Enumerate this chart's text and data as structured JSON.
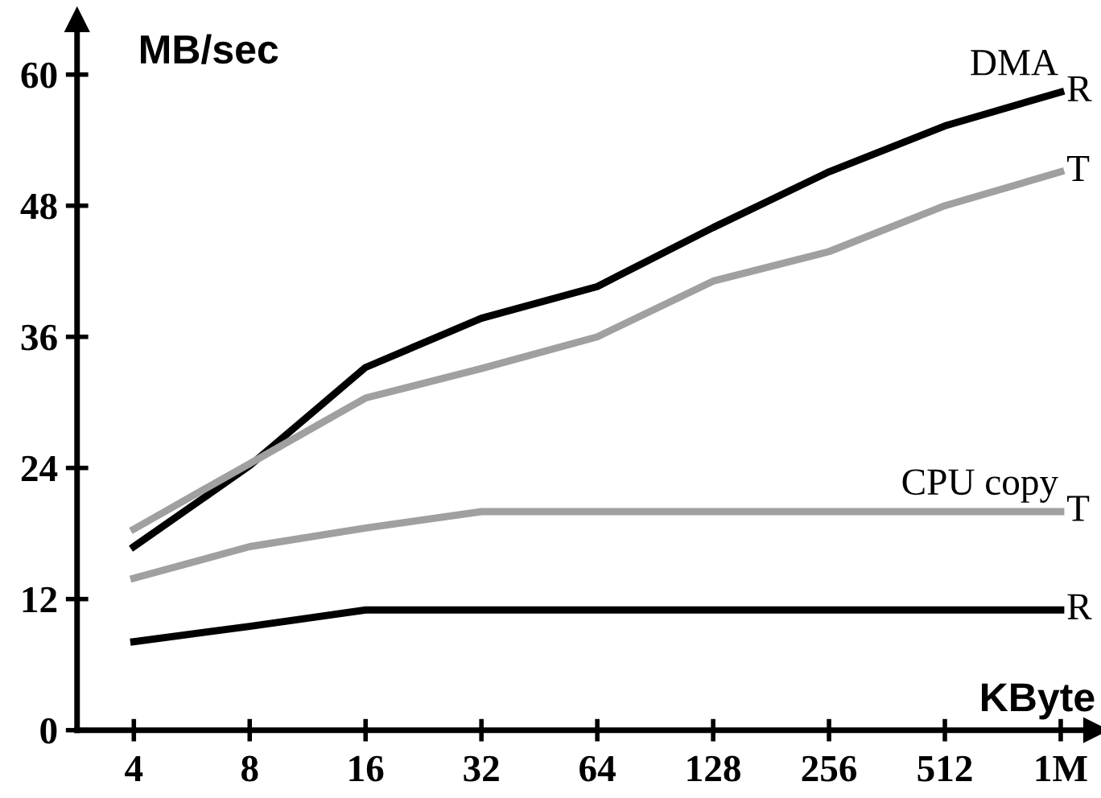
{
  "chart_data": {
    "type": "line",
    "ylabel": "MB/sec",
    "xlabel": "KByte",
    "categories": [
      "4",
      "8",
      "16",
      "32",
      "64",
      "128",
      "256",
      "512",
      "1M"
    ],
    "series": [
      {
        "name": "R",
        "color": "#000000",
        "values": [
          16.8,
          24.2,
          33.2,
          37.7,
          40.6,
          46.0,
          51.1,
          55.3,
          58.4
        ]
      },
      {
        "name": "T",
        "color": "#a0a0a0",
        "values": [
          18.4,
          24.4,
          30.4,
          33.1,
          36.0,
          41.1,
          43.8,
          48.0,
          51.1
        ]
      },
      {
        "name": "T",
        "color": "#a0a0a0",
        "values": [
          13.9,
          16.8,
          18.5,
          20.0,
          20.0,
          20.0,
          20.0,
          20.0,
          20.0
        ]
      },
      {
        "name": "R",
        "color": "#000000",
        "values": [
          8.1,
          9.5,
          11.0,
          11.0,
          11.0,
          11.0,
          11.0,
          11.0,
          11.0
        ]
      }
    ],
    "annotations": [
      "DMA",
      "CPU copy"
    ],
    "ylim": [
      0,
      65
    ],
    "yticks": [
      0,
      12,
      24,
      36,
      48,
      60
    ],
    "grid": false,
    "legend": false,
    "marker": "none",
    "line_style": "solid"
  }
}
